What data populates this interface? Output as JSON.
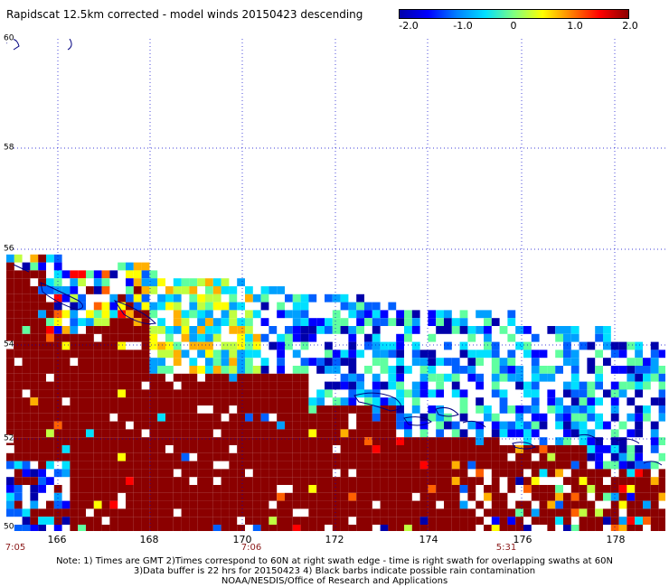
{
  "title": "Rapidscat 12.5km corrected - model winds 20150423 descending",
  "colorbar": {
    "ticks": [
      "-2.0",
      "-1.0",
      "0",
      "1.0",
      "2.0"
    ],
    "colors": [
      "#0000aa",
      "#0000ff",
      "#0080ff",
      "#00e0ff",
      "#80ff80",
      "#ffff00",
      "#ff8000",
      "#ff0000",
      "#8b0000"
    ]
  },
  "map": {
    "lat_labels": [
      "60",
      "58",
      "56",
      "54",
      "52",
      "50"
    ],
    "lon_labels": [
      "166",
      "168",
      "170",
      "172",
      "174",
      "176",
      "178"
    ],
    "time_labels": [
      "7:05",
      "7:06",
      "5:31"
    ],
    "grid": true,
    "lat_range": [
      50,
      60
    ],
    "lon_range": [
      165,
      179
    ],
    "colors": {
      "land": "#000080",
      "grid": "#0000cc"
    }
  },
  "notes": [
    "Note: 1) Times are GMT 2)Times correspond to 60N at right swath edge - time is right swath for overlapping swaths at 60N",
    "3)Data buffer is 22 hrs for 20150423 4) Black barbs indicate possible rain contamination",
    "NOAA/NESDIS/Office of Research and Applications"
  ]
}
